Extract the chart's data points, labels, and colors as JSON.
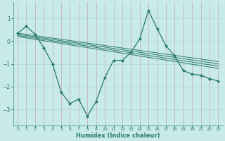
{
  "background_color": "#c8eaea",
  "grid_color": "#b0d4d4",
  "line_color": "#2a7a6a",
  "xlabel": "Humidex (Indice chaleur)",
  "xlim": [
    -0.5,
    23.5
  ],
  "ylim": [
    -3.7,
    1.7
  ],
  "yticks": [
    -3,
    -2,
    -1,
    0,
    1
  ],
  "xticks": [
    0,
    1,
    2,
    3,
    4,
    5,
    6,
    7,
    8,
    9,
    10,
    11,
    12,
    13,
    14,
    15,
    16,
    17,
    18,
    19,
    20,
    21,
    22,
    23
  ],
  "series_main": {
    "x": [
      0,
      1,
      2,
      3,
      4,
      5,
      6,
      7,
      8,
      9,
      10,
      11,
      12,
      13,
      14,
      15,
      16,
      17,
      18,
      19,
      20,
      21,
      22,
      23
    ],
    "y": [
      0.35,
      0.65,
      0.3,
      -0.3,
      -1.0,
      -2.25,
      -2.75,
      -2.55,
      -3.3,
      -2.65,
      -1.6,
      -0.85,
      -0.85,
      -0.5,
      0.1,
      1.35,
      0.55,
      -0.2,
      -0.65,
      -1.3,
      -1.45,
      -1.5,
      -1.65,
      -1.75
    ]
  },
  "line1": {
    "x": [
      0,
      23
    ],
    "y": [
      0.35,
      -0.9
    ]
  },
  "line2": {
    "x": [
      0,
      23
    ],
    "y": [
      0.3,
      -1.0
    ]
  },
  "line3": {
    "x": [
      0,
      23
    ],
    "y": [
      0.25,
      -1.1
    ]
  },
  "line4": {
    "x": [
      0,
      23
    ],
    "y": [
      0.2,
      -1.2
    ]
  },
  "spine_color": "#6aadad"
}
